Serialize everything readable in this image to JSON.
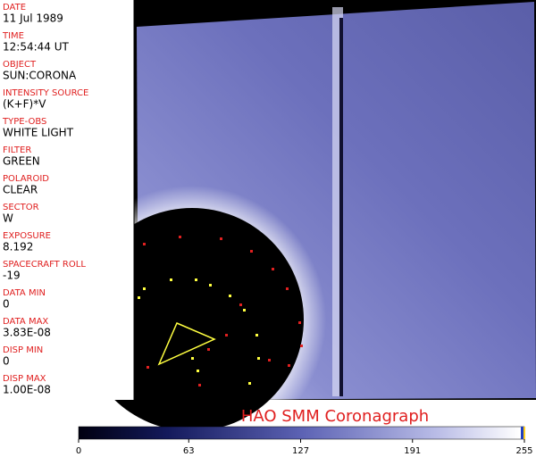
{
  "fields": [
    {
      "label": "DATE",
      "value": "11 Jul 1989"
    },
    {
      "label": "TIME",
      "value": "12:54:44 UT"
    },
    {
      "label": "OBJECT",
      "value": "SUN:CORONA"
    },
    {
      "label": "INTENSITY SOURCE",
      "value": "(K+F)*V"
    },
    {
      "label": "TYPE-OBS",
      "value": "WHITE LIGHT"
    },
    {
      "label": "FILTER",
      "value": "GREEN"
    },
    {
      "label": "POLAROID",
      "value": "CLEAR"
    },
    {
      "label": "SECTOR",
      "value": "W"
    },
    {
      "label": "EXPOSURE",
      "value": "8.192"
    },
    {
      "label": "SPACECRAFT ROLL",
      "value": "-19"
    },
    {
      "label": "DATA MIN",
      "value": "0"
    },
    {
      "label": "DATA MAX",
      "value": "3.83E-08"
    },
    {
      "label": "DISP MIN",
      "value": "0"
    },
    {
      "label": "DISP MAX",
      "value": "1.00E-08"
    }
  ],
  "title": "HAO  SMM Coronagraph",
  "colorbar": {
    "ticks": [
      0,
      63,
      127,
      191,
      255
    ]
  }
}
